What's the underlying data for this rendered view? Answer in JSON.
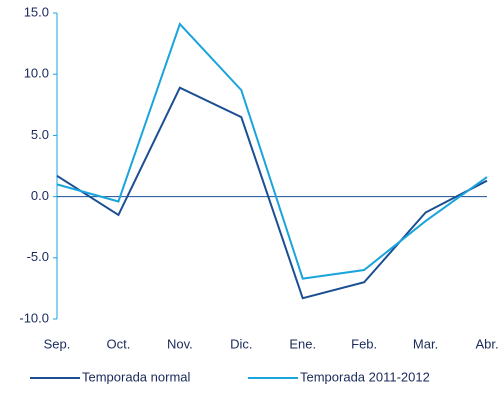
{
  "chart_data": {
    "type": "line",
    "categories": [
      "Sep.",
      "Oct.",
      "Nov.",
      "Dic.",
      "Ene.",
      "Feb.",
      "Mar.",
      "Abr."
    ],
    "series": [
      {
        "name": "Temporada normal",
        "color": "#1b4f93",
        "values": [
          1.7,
          -1.5,
          8.9,
          6.5,
          -8.3,
          -7.0,
          -1.3,
          1.3
        ]
      },
      {
        "name": "Temporada 2011-2012",
        "color": "#19a4dc",
        "values": [
          1.0,
          -0.4,
          14.1,
          8.7,
          -6.7,
          -6.0,
          -2.0,
          1.6
        ]
      }
    ],
    "ylim": [
      -10,
      15
    ],
    "yticks": [
      {
        "value": -10,
        "label": "-10.0"
      },
      {
        "value": -5,
        "label": "-5.0"
      },
      {
        "value": 0,
        "label": "0.0"
      },
      {
        "value": 5,
        "label": "5.0"
      },
      {
        "value": 10,
        "label": "10.0"
      },
      {
        "value": 15,
        "label": "15.0"
      }
    ],
    "legend": "bottom"
  }
}
